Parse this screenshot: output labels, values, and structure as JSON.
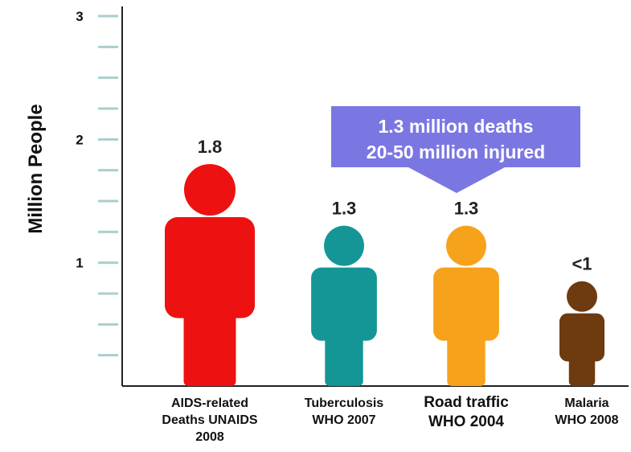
{
  "chart_data": {
    "type": "bar",
    "title": "",
    "ylabel": "Million People",
    "xlabel": "",
    "ylim": [
      0,
      3
    ],
    "yticks": [
      "1",
      "2",
      "3"
    ],
    "categories": [
      {
        "lines": [
          "AIDS-related",
          "Deaths UNAIDS",
          "2008"
        ]
      },
      {
        "lines": [
          "Tuberculosis",
          "WHO 2007"
        ]
      },
      {
        "lines": [
          "Road traffic",
          "WHO 2004"
        ]
      },
      {
        "lines": [
          "Malaria",
          "WHO 2008"
        ]
      }
    ],
    "values": [
      1.8,
      1.3,
      1.3,
      0.85
    ],
    "value_labels": [
      "1.8",
      "1.3",
      "1.3",
      "<1"
    ],
    "colors": [
      "#ee1111",
      "#149696",
      "#f7a21b",
      "#6e3a10"
    ],
    "mark_icon": "person-icon",
    "grid": false,
    "annotation": {
      "lines": [
        "1.3 million deaths",
        "20-50 million injured"
      ],
      "color": "#7b77e2",
      "points_to": "Road traffic"
    }
  }
}
